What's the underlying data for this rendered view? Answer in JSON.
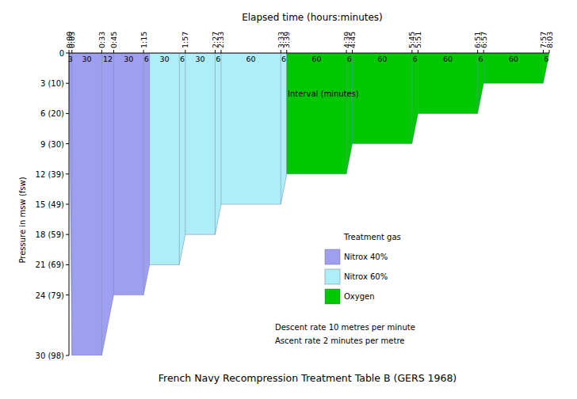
{
  "chart_data": {
    "type": "area",
    "title": "French Navy Recompression Treatment Table B (GERS 1968)",
    "x_label": "Elapsed time (hours:minutes)",
    "y_label": "Pressure in msw (fsw)",
    "annotation": "Interval (minutes)",
    "legend_title": "Treatment gas",
    "notes": [
      "Descent rate 10 metres per minute",
      "Ascent rate 2 minutes per metre"
    ],
    "legend": "center",
    "xlim": [
      0,
      483
    ],
    "ylim": [
      0,
      30
    ],
    "xticks": [
      {
        "value": 0,
        "label": "0:00"
      },
      {
        "value": 3,
        "label": "0:03"
      },
      {
        "value": 33,
        "label": "0:33"
      },
      {
        "value": 45,
        "label": "0:45"
      },
      {
        "value": 75,
        "label": "1:15"
      },
      {
        "value": 117,
        "label": "1:57"
      },
      {
        "value": 147,
        "label": "2:27"
      },
      {
        "value": 153,
        "label": "2:33"
      },
      {
        "value": 213,
        "label": "3:33"
      },
      {
        "value": 219,
        "label": "3:39"
      },
      {
        "value": 279,
        "label": "4:39"
      },
      {
        "value": 285,
        "label": "4:45"
      },
      {
        "value": 345,
        "label": "5:45"
      },
      {
        "value": 351,
        "label": "5:51"
      },
      {
        "value": 411,
        "label": "6:51"
      },
      {
        "value": 417,
        "label": "6:57"
      },
      {
        "value": 477,
        "label": "7:57"
      },
      {
        "value": 483,
        "label": "8:03"
      }
    ],
    "yticks": [
      0,
      {
        "value": 3,
        "label": "3 (10)"
      },
      {
        "value": 6,
        "label": "6 (20)"
      },
      {
        "value": 9,
        "label": "9 (30)"
      },
      {
        "value": 12,
        "label": "12 (39)"
      },
      {
        "value": 15,
        "label": "15 (49)"
      },
      {
        "value": 18,
        "label": "18 (59)"
      },
      {
        "value": 21,
        "label": "21 (69)"
      },
      {
        "value": 24,
        "label": "24 (79)"
      },
      {
        "value": 30,
        "label": "30 (98)"
      }
    ],
    "interval_values": [
      3,
      30,
      12,
      30,
      6,
      30,
      6,
      30,
      6,
      60,
      6,
      60,
      6,
      60,
      6,
      60,
      6,
      60,
      6
    ],
    "series": [
      {
        "name": "Nitrox 40%",
        "color": "#9f9ff2",
        "x": [
          0,
          3,
          33,
          45,
          75,
          81
        ],
        "values": [
          0,
          30,
          30,
          24,
          24,
          21
        ]
      },
      {
        "name": "Nitrox 60%",
        "color": "#aeeef8",
        "x": [
          81,
          111,
          117,
          147,
          153,
          213,
          219
        ],
        "values": [
          21,
          21,
          18,
          18,
          15,
          15,
          12
        ]
      },
      {
        "name": "Oxygen",
        "color": "#00c800",
        "x": [
          219,
          279,
          285,
          345,
          351,
          411,
          417,
          477,
          483
        ],
        "values": [
          12,
          12,
          9,
          9,
          6,
          6,
          3,
          3,
          0
        ]
      }
    ]
  }
}
